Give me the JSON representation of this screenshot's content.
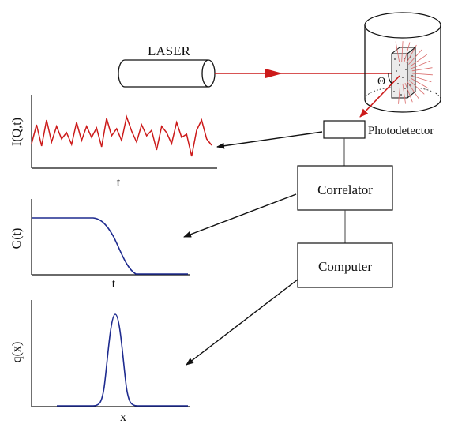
{
  "labels": {
    "laser": "LASER",
    "theta": "Θ",
    "photodetector": "Photodetector",
    "correlator": "Correlator",
    "computer": "Computer"
  },
  "plots": {
    "intensity": {
      "ylabel": "I(Q,t)",
      "xlabel": "t"
    },
    "correlation": {
      "ylabel": "G(t)",
      "xlabel": "t"
    },
    "distribution": {
      "ylabel": "q(x)",
      "xlabel": "x"
    }
  },
  "colors": {
    "laser_beam": "#cc1a1a",
    "intensity_trace": "#cc1a1a",
    "curves": "#1e2b8f",
    "ink": "#111111"
  }
}
